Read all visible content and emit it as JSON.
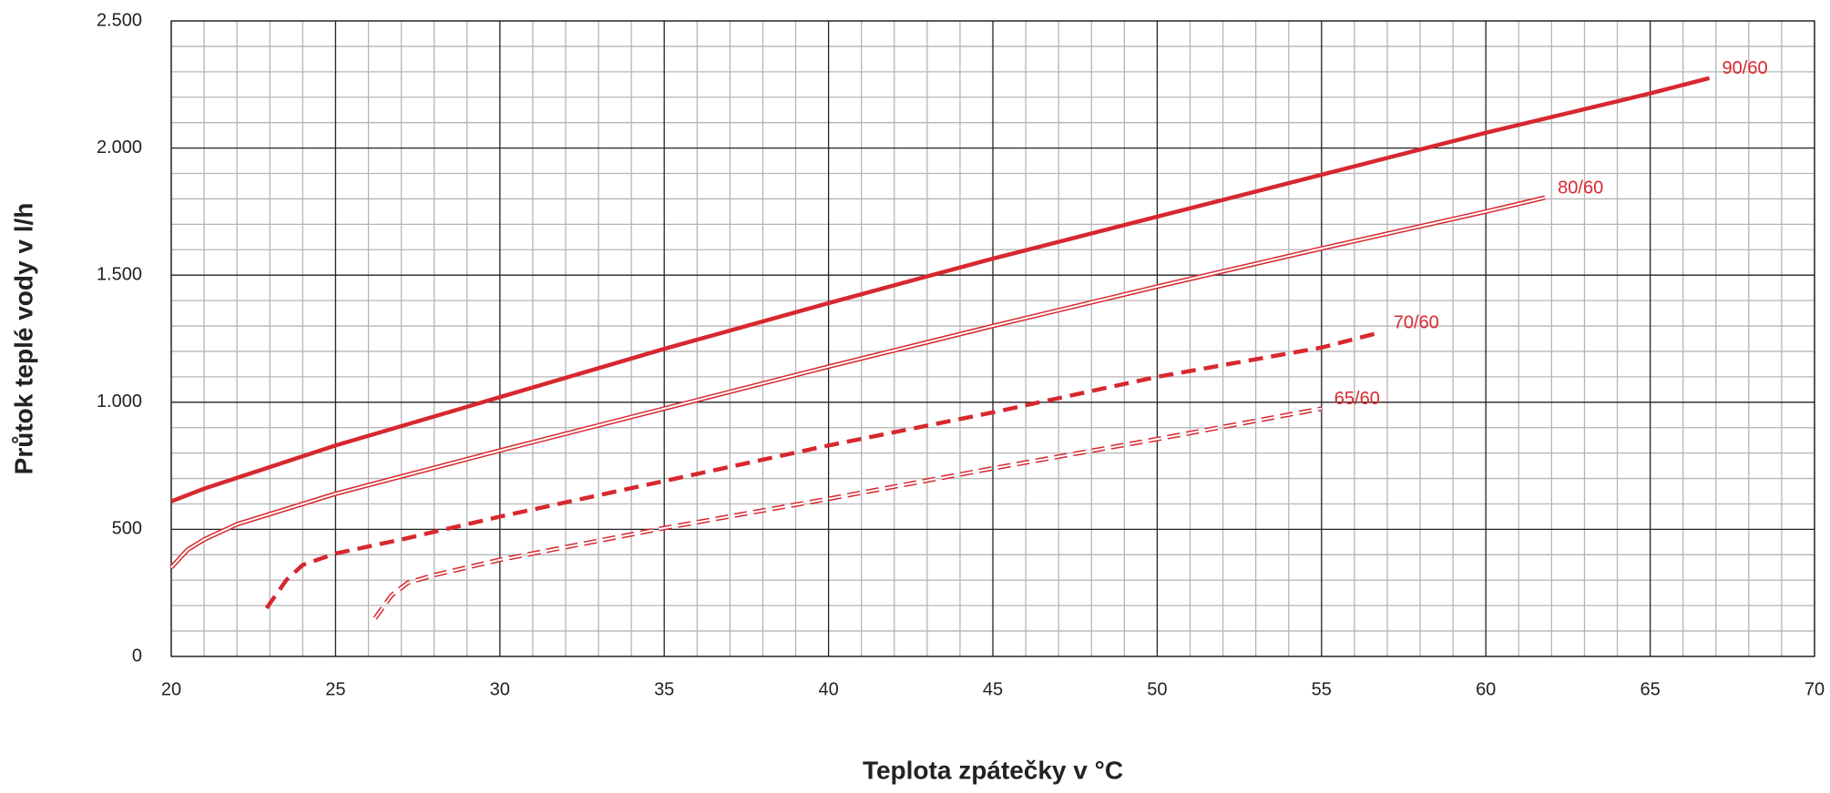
{
  "chart_data": {
    "type": "line",
    "x_label": "Teplota zpátečky v °C",
    "y_label": "Průtok teplé vody v l/h",
    "xlim": [
      20,
      70
    ],
    "ylim": [
      0,
      2500
    ],
    "xticks": [
      20,
      25,
      30,
      35,
      40,
      45,
      50,
      55,
      60,
      65,
      70
    ],
    "yticks": [
      0,
      500,
      {
        "value": 1000,
        "label": "1.000"
      },
      {
        "value": 1500,
        "label": "1.500"
      },
      {
        "value": 2000,
        "label": "2.000"
      },
      {
        "value": 2500,
        "label": "2.500"
      }
    ],
    "grid": true,
    "series": [
      {
        "name": "90/60",
        "color": "#d7282f",
        "style": "solid",
        "x": [
          20,
          21,
          25,
          30,
          35,
          40,
          45,
          50,
          55,
          60,
          65,
          66.8
        ],
        "values": [
          610,
          660,
          830,
          1020,
          1210,
          1390,
          1565,
          1730,
          1895,
          2060,
          2215,
          2275
        ]
      },
      {
        "name": "80/60",
        "color": "#d7282f",
        "style": "double",
        "x": [
          20,
          20.5,
          21,
          22,
          25,
          30,
          35,
          40,
          45,
          50,
          55,
          60,
          61.8
        ],
        "values": [
          350,
          420,
          460,
          520,
          640,
          810,
          975,
          1140,
          1300,
          1455,
          1605,
          1750,
          1805
        ]
      },
      {
        "name": "70/60",
        "color": "#d7282f",
        "style": "dashed",
        "x": [
          22.9,
          23.5,
          24,
          25,
          27,
          30,
          35,
          40,
          45,
          50,
          55,
          56.8
        ],
        "values": [
          190,
          300,
          360,
          405,
          460,
          550,
          690,
          830,
          960,
          1100,
          1215,
          1275
        ]
      },
      {
        "name": "65/60",
        "color": "#d7282f",
        "style": "double-dashed",
        "x": [
          26.2,
          26.7,
          27.2,
          28,
          30,
          35,
          40,
          45,
          50,
          55
        ],
        "values": [
          150,
          240,
          290,
          320,
          380,
          505,
          620,
          740,
          855,
          975
        ]
      }
    ]
  }
}
